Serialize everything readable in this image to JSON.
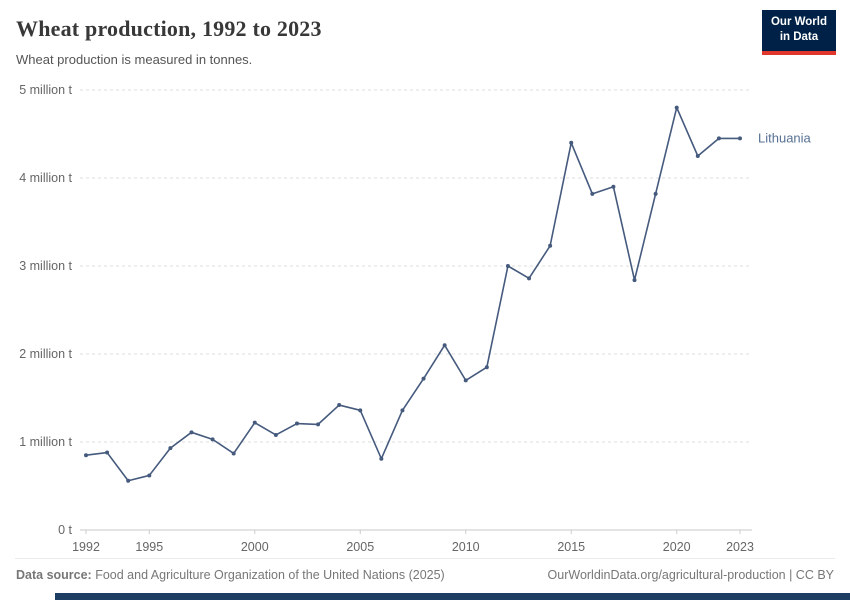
{
  "header": {
    "title": "Wheat production, 1992 to 2023",
    "subtitle": "Wheat production is measured in tonnes.",
    "logo": {
      "line1": "Our World",
      "line2": "in Data"
    }
  },
  "chart_data": {
    "type": "line",
    "title": "Wheat production, 1992 to 2023",
    "xlabel": "",
    "ylabel": "tonnes",
    "xlim": [
      1992,
      2023
    ],
    "ylim": [
      0,
      5000000
    ],
    "grid": "horizontal-dashed",
    "legend_position": "end-of-line-label",
    "x_ticks": [
      1992,
      1995,
      2000,
      2005,
      2010,
      2015,
      2020,
      2023
    ],
    "y_ticks": [
      {
        "value": 0,
        "label": "0 t"
      },
      {
        "value": 1000000,
        "label": "1 million t"
      },
      {
        "value": 2000000,
        "label": "2 million t"
      },
      {
        "value": 3000000,
        "label": "3 million t"
      },
      {
        "value": 4000000,
        "label": "4 million t"
      },
      {
        "value": 5000000,
        "label": "5 million t"
      }
    ],
    "series": [
      {
        "name": "Lithuania",
        "color": "#455a7d",
        "label_color": "#577194",
        "x": [
          1992,
          1993,
          1994,
          1995,
          1996,
          1997,
          1998,
          1999,
          2000,
          2001,
          2002,
          2003,
          2004,
          2005,
          2006,
          2007,
          2008,
          2009,
          2010,
          2011,
          2012,
          2013,
          2014,
          2015,
          2016,
          2017,
          2018,
          2019,
          2020,
          2021,
          2022,
          2023
        ],
        "values": [
          850000,
          880000,
          560000,
          620000,
          930000,
          1110000,
          1030000,
          870000,
          1220000,
          1080000,
          1210000,
          1200000,
          1420000,
          1360000,
          810000,
          1360000,
          1720000,
          2100000,
          1700000,
          1850000,
          3000000,
          2860000,
          3230000,
          4400000,
          3820000,
          3900000,
          2840000,
          3820000,
          4800000,
          4250000,
          4450000,
          4450000
        ]
      }
    ]
  },
  "footer": {
    "source_label": "Data source:",
    "source_text": " Food and Agriculture Organization of the United Nations (2025)",
    "link_text": "OurWorldinData.org/agricultural-production | CC BY"
  },
  "colors": {
    "logo_bg": "#002147",
    "logo_red": "#e0362c",
    "bottom_bar": "#1d3d63",
    "grid": "#dddddd",
    "axis_text": "#666666"
  }
}
